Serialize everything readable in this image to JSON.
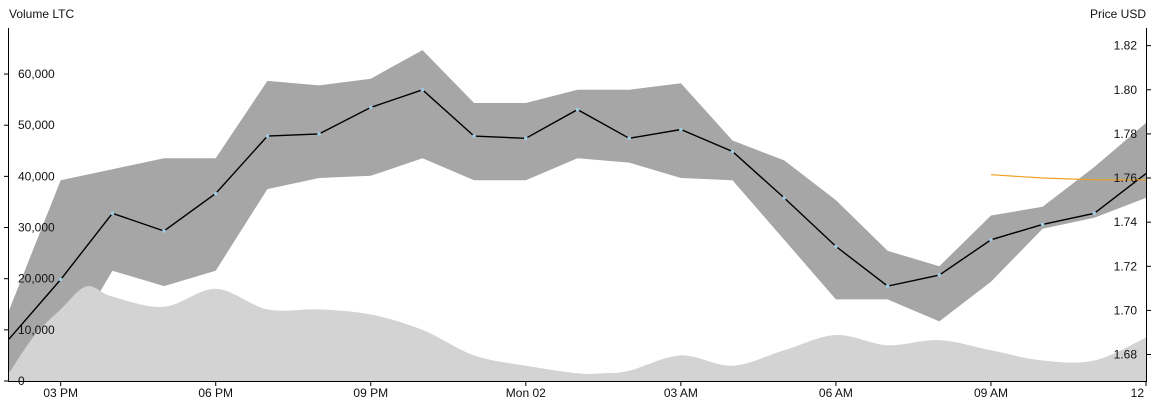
{
  "chart_data": {
    "type": "line",
    "left_axis_title": "Volume LTC",
    "right_axis_title": "Price USD",
    "x_tick_labels": [
      "03 PM",
      "06 PM",
      "09 PM",
      "Mon 02",
      "03 AM",
      "06 AM",
      "09 AM",
      "12"
    ],
    "x_tick_hours": [
      1,
      4,
      7,
      10,
      13,
      16,
      19,
      22
    ],
    "x_range_hours": [
      0,
      22
    ],
    "volume_ylim": [
      0,
      69000
    ],
    "volume_ticks": [
      0,
      10000,
      20000,
      30000,
      40000,
      50000,
      60000
    ],
    "volume_tick_labels": [
      "0",
      "10,000",
      "20,000",
      "30,000",
      "40,000",
      "50,000",
      "60,000"
    ],
    "price_ylim": [
      1.668,
      1.828
    ],
    "price_ticks": [
      1.68,
      1.7,
      1.72,
      1.74,
      1.76,
      1.78,
      1.8,
      1.82
    ],
    "price_tick_labels": [
      "1.68",
      "1.70",
      "1.72",
      "1.74",
      "1.76",
      "1.78",
      "1.80",
      "1.82"
    ],
    "colors": {
      "band": "#a6a6a6",
      "volume_area": "#d3d3d3",
      "price_line": "#000000",
      "marker": "#9ecae1",
      "reference_line": "#f0a020"
    },
    "series": [
      {
        "kind": "price_line",
        "axis": "price",
        "x": [
          0,
          1,
          2,
          3,
          4,
          5,
          6,
          7,
          8,
          9,
          10,
          11,
          12,
          13,
          14,
          15,
          16,
          17,
          18,
          19,
          20,
          21,
          22
        ],
        "values": [
          1.687,
          1.714,
          1.744,
          1.736,
          1.753,
          1.779,
          1.78,
          1.792,
          1.8,
          1.779,
          1.778,
          1.791,
          1.778,
          1.782,
          1.772,
          1.751,
          1.729,
          1.711,
          1.716,
          1.732,
          1.739,
          1.744,
          1.762
        ]
      },
      {
        "kind": "price_band",
        "axis": "price",
        "x": [
          0,
          1,
          2,
          3,
          4,
          5,
          6,
          7,
          8,
          9,
          10,
          11,
          12,
          13,
          14,
          15,
          16,
          17,
          18,
          19,
          20,
          21,
          22
        ],
        "upper": [
          1.7,
          1.759,
          1.764,
          1.769,
          1.769,
          1.804,
          1.802,
          1.805,
          1.818,
          1.794,
          1.794,
          1.8,
          1.8,
          1.803,
          1.777,
          1.768,
          1.75,
          1.727,
          1.72,
          1.743,
          1.747,
          1.765,
          1.785
        ],
        "lower": [
          1.672,
          1.678,
          1.718,
          1.711,
          1.718,
          1.755,
          1.76,
          1.761,
          1.769,
          1.759,
          1.759,
          1.769,
          1.767,
          1.76,
          1.759,
          1.732,
          1.705,
          1.705,
          1.695,
          1.713,
          1.737,
          1.742,
          1.751
        ]
      },
      {
        "kind": "volume_area",
        "axis": "volume",
        "x": [
          0,
          0.5,
          1,
          1.5,
          2,
          3,
          4,
          5,
          6,
          7,
          8,
          9,
          10,
          11,
          11.5,
          12,
          13,
          14,
          15,
          16,
          17,
          18,
          19,
          20,
          21,
          22
        ],
        "values": [
          1500,
          9000,
          14000,
          18500,
          16500,
          14500,
          18000,
          14000,
          14000,
          13000,
          10000,
          5000,
          3000,
          1500,
          1500,
          2000,
          5000,
          3000,
          6000,
          9000,
          7000,
          8000,
          6000,
          4000,
          4000,
          8500
        ]
      },
      {
        "kind": "reference_line",
        "axis": "price",
        "x": [
          19,
          20,
          21,
          22
        ],
        "values": [
          1.7615,
          1.76,
          1.7592,
          1.7592
        ]
      }
    ]
  }
}
